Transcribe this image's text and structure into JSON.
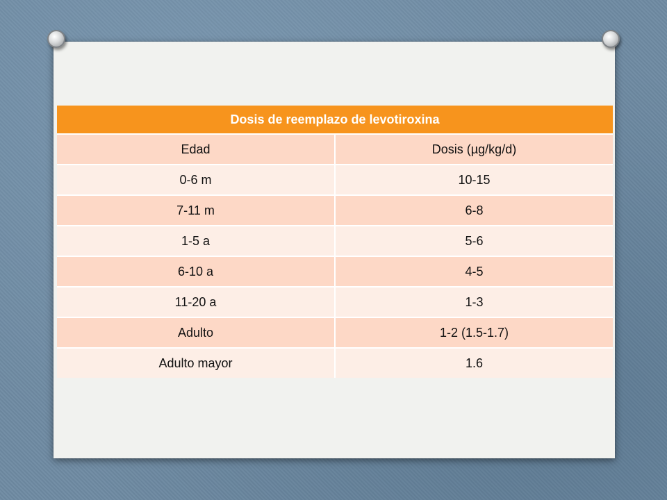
{
  "table": {
    "title": "Dosis de reemplazo de levotiroxina",
    "columns": [
      "Edad",
      "Dosis (µg/kg/d)"
    ],
    "rows": [
      {
        "edad": "0-6 m",
        "dosis": "10-15"
      },
      {
        "edad": "7-11 m",
        "dosis": "6-8"
      },
      {
        "edad": "1-5 a",
        "dosis": "5-6"
      },
      {
        "edad": "6-10 a",
        "dosis": "4-5"
      },
      {
        "edad": "11-20 a",
        "dosis": "1-3"
      },
      {
        "edad": "Adulto",
        "dosis": "1-2 (1.5-1.7)"
      },
      {
        "edad": "Adulto mayor",
        "dosis": "1.6"
      }
    ]
  },
  "colors": {
    "header": "#f7941d",
    "row_dark": "#fdd8c6",
    "row_light": "#fdeee6",
    "panel": "#f1f2ef",
    "background": "#6f8ba3"
  }
}
